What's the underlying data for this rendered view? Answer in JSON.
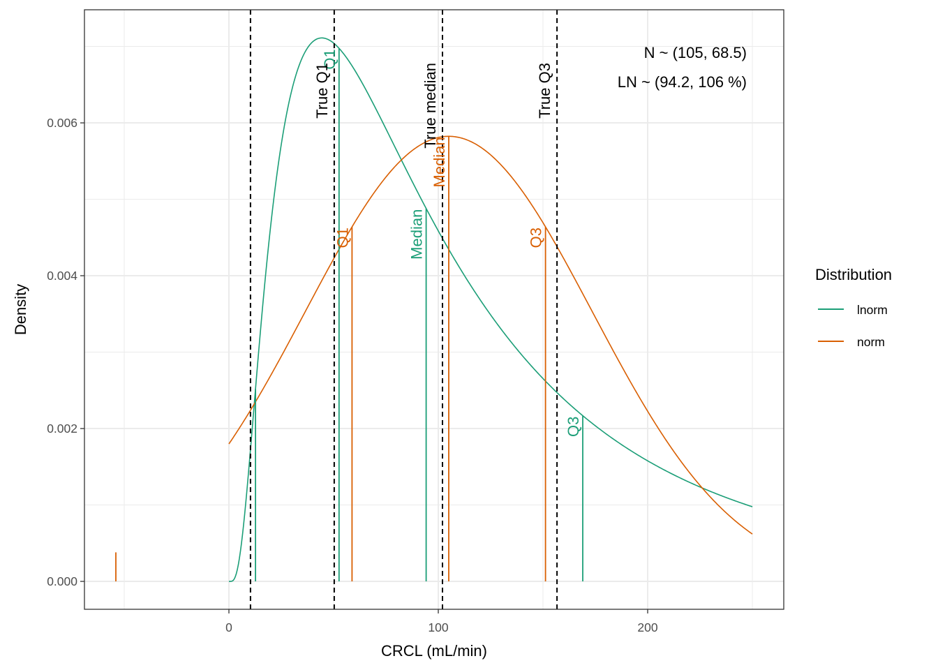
{
  "chart_data": {
    "type": "line",
    "title": "",
    "xlabel": "CRCL (mL/min)",
    "ylabel": "Density",
    "xlim": [
      -69,
      265
    ],
    "ylim": [
      -0.000365,
      0.00748
    ],
    "x_ticks": [
      0,
      100,
      200
    ],
    "x_tick_labels": [
      "0",
      "100",
      "200"
    ],
    "y_ticks": [
      0.0,
      0.002,
      0.004,
      0.006
    ],
    "y_tick_labels": [
      "0.000",
      "0.002",
      "0.004",
      "0.006"
    ],
    "x_minor_gridlines": [
      -50,
      50,
      150,
      250
    ],
    "y_minor_gridlines": [
      0.001,
      0.003,
      0.005,
      0.007
    ],
    "grid": true,
    "legend": {
      "title": "Distribution",
      "placement": "right",
      "entries": [
        {
          "label": "lnorm",
          "color": "#1b9e77"
        },
        {
          "label": "norm",
          "color": "#d95f02"
        }
      ]
    },
    "series": [
      {
        "name": "lnorm",
        "color": "#1b9e77",
        "distribution": "lognormal",
        "median": 94.2,
        "cv_percent": 106,
        "x_range": [
          0,
          250
        ],
        "peak": {
          "x": 44.4,
          "y": 0.00711
        },
        "end": {
          "x": 250,
          "y": 0.00098
        }
      },
      {
        "name": "norm",
        "color": "#d95f02",
        "distribution": "normal",
        "mean": 105,
        "sd": 68.5,
        "x_range": [
          0,
          250
        ],
        "peak": {
          "x": 105,
          "y": 0.00582
        },
        "start": {
          "x": 0,
          "y": 0.0018
        },
        "end": {
          "x": 250,
          "y": 0.00062
        }
      }
    ],
    "true_quantile_lines": [
      {
        "x": 10.3,
        "label": ""
      },
      {
        "x": 50.3,
        "label": "True Q1"
      },
      {
        "x": 102,
        "label": "True median"
      },
      {
        "x": 156.7,
        "label": "True Q3"
      }
    ],
    "quantile_markers": [
      {
        "series": "lnorm",
        "x": 12.7,
        "label": ""
      },
      {
        "series": "lnorm",
        "x": 52.6,
        "label": "Q1"
      },
      {
        "series": "lnorm",
        "x": 94.2,
        "label": "Median"
      },
      {
        "series": "lnorm",
        "x": 169,
        "label": "Q3"
      },
      {
        "series": "norm",
        "x": -54,
        "label": "",
        "height": 0.00038
      },
      {
        "series": "norm",
        "x": 58.8,
        "label": "Q1"
      },
      {
        "series": "norm",
        "x": 105,
        "label": "Median"
      },
      {
        "series": "norm",
        "x": 151.2,
        "label": "Q3"
      }
    ],
    "annotations": [
      {
        "text": "N ~ (105, 68.5)",
        "placement": "top-right"
      },
      {
        "text": "LN ~ (94.2, 106 %)",
        "placement": "top-right"
      }
    ]
  }
}
